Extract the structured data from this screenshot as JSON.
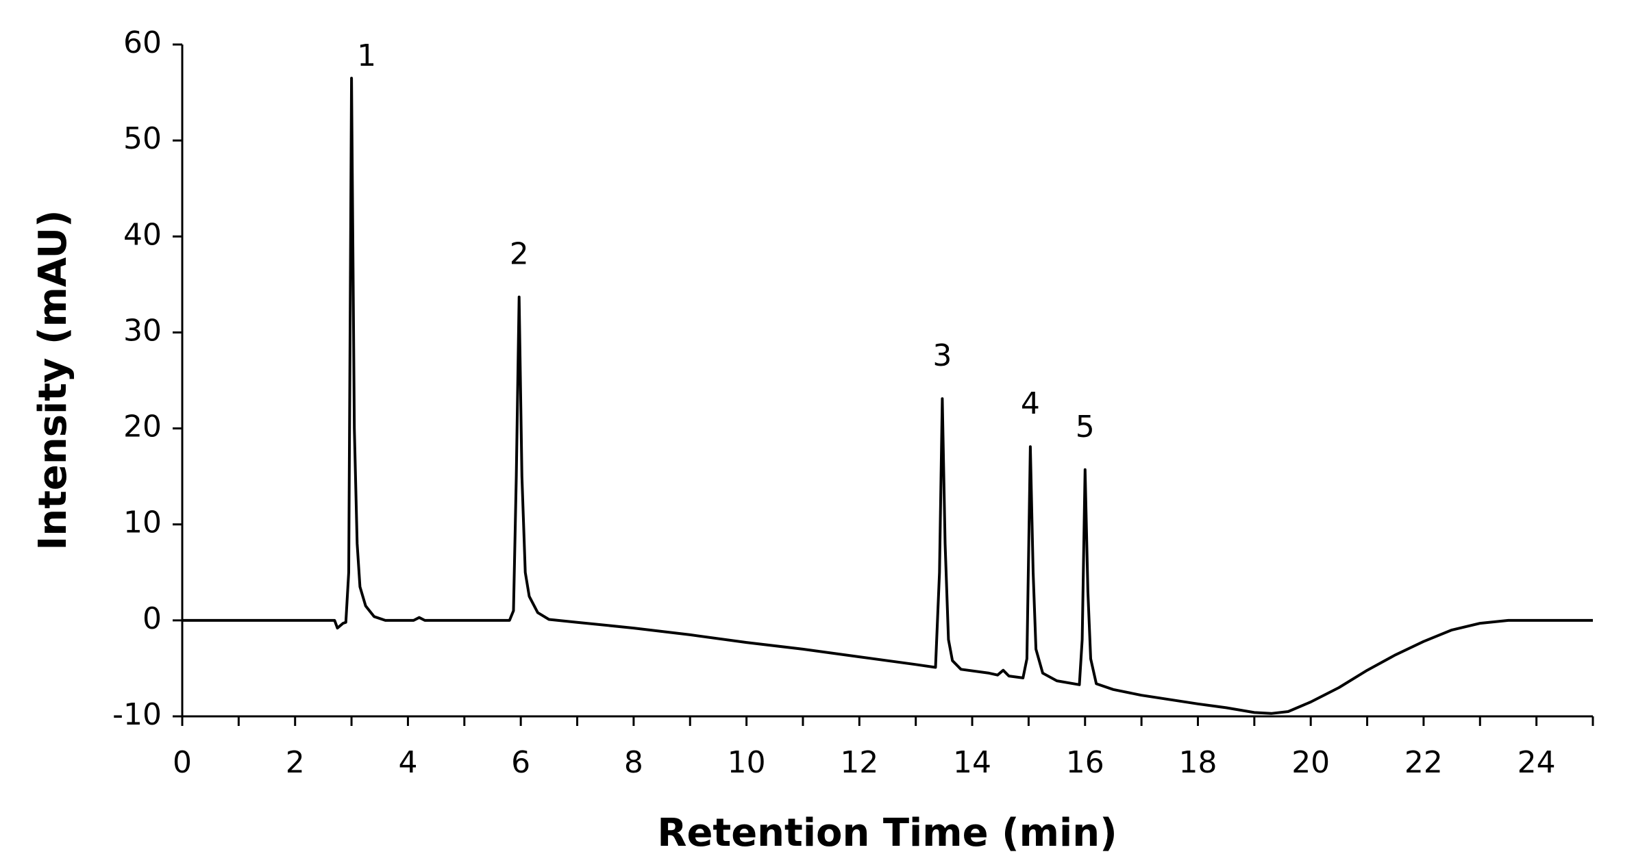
{
  "chart_data": {
    "type": "line",
    "x_label": "Retention Time (min)",
    "y_label": "Intensity (mAU)",
    "xlim": [
      0,
      25
    ],
    "xticks": [
      0,
      2,
      4,
      6,
      8,
      10,
      12,
      14,
      16,
      18,
      20,
      22,
      24
    ],
    "x_minor_ticks": [
      1,
      3,
      5,
      7,
      9,
      11,
      13,
      15,
      17,
      19,
      21,
      23,
      25
    ],
    "ylim": [
      -10,
      60
    ],
    "yticks": [
      -10,
      0,
      10,
      20,
      30,
      40,
      50,
      60
    ],
    "grid": false,
    "series": [
      {
        "color": "#000000",
        "x": [
          0,
          2.7,
          2.75,
          2.85,
          2.9,
          2.95,
          3.0,
          3.05,
          3.1,
          3.15,
          3.25,
          3.4,
          3.6,
          4.1,
          4.2,
          4.3,
          5.8,
          5.87,
          5.92,
          5.97,
          6.02,
          6.08,
          6.15,
          6.3,
          6.5,
          7,
          8,
          9,
          10,
          11,
          12,
          13,
          13.35,
          13.42,
          13.47,
          13.52,
          13.58,
          13.65,
          13.8,
          14.3,
          14.45,
          14.55,
          14.65,
          14.9,
          14.97,
          15.03,
          15.08,
          15.13,
          15.25,
          15.5,
          15.9,
          15.95,
          16.0,
          16.05,
          16.1,
          16.2,
          16.5,
          17,
          18,
          18.5,
          19,
          19.3,
          19.6,
          20,
          20.5,
          21,
          21.5,
          22,
          22.5,
          23,
          23.5,
          25
        ],
        "values": [
          0,
          0,
          -0.8,
          -0.3,
          -0.2,
          5,
          56.5,
          20,
          8,
          3.5,
          1.5,
          0.4,
          0,
          0,
          0.3,
          0,
          0,
          1,
          15,
          33.7,
          15,
          5,
          2.5,
          0.8,
          0.1,
          -0.2,
          -0.8,
          -1.5,
          -2.3,
          -3.0,
          -3.8,
          -4.6,
          -4.9,
          5,
          23.1,
          8,
          -2,
          -4.2,
          -5.1,
          -5.5,
          -5.7,
          -5.2,
          -5.8,
          -6.0,
          -4,
          18.1,
          5,
          -3,
          -5.5,
          -6.3,
          -6.7,
          -2,
          15.7,
          3,
          -4,
          -6.6,
          -7.2,
          -7.8,
          -8.7,
          -9.1,
          -9.6,
          -9.7,
          -9.5,
          -8.5,
          -7,
          -5.2,
          -3.6,
          -2.2,
          -1.0,
          -0.3,
          0,
          0
        ]
      }
    ],
    "annotations": [
      {
        "text": "1",
        "x": 3.0,
        "y": 56.5
      },
      {
        "text": "2",
        "x": 5.97,
        "y": 33.7
      },
      {
        "text": "3",
        "x": 13.47,
        "y": 23.1
      },
      {
        "text": "4",
        "x": 15.03,
        "y": 18.1
      },
      {
        "text": "5",
        "x": 16.0,
        "y": 15.7
      }
    ]
  }
}
